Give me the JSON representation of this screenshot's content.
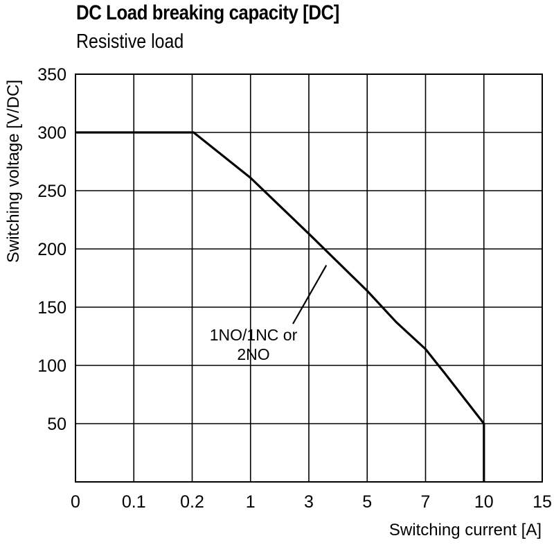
{
  "chart_data": {
    "type": "line",
    "title": "DC Load breaking capacity [DC]",
    "subtitle": "Resistive load",
    "xlabel": "Switching current [A]",
    "ylabel": "Switching voltage [V/DC]",
    "x_scale": "categorical-nonlinear",
    "x_ticks": [
      "0",
      "0.1",
      "0.2",
      "1",
      "3",
      "5",
      "7",
      "10",
      "15"
    ],
    "y_ticks": [
      "350",
      "300",
      "250",
      "200",
      "150",
      "100",
      "50"
    ],
    "ylim": [
      0,
      350
    ],
    "grid": true,
    "series": [
      {
        "name": "1NO/1NC or 2NO",
        "points": [
          {
            "x": 0,
            "y": 300
          },
          {
            "x": 0.22,
            "y": 300
          },
          {
            "x": 1,
            "y": 261
          },
          {
            "x": 3,
            "y": 213
          },
          {
            "x": 5,
            "y": 164
          },
          {
            "x": 6,
            "y": 137
          },
          {
            "x": 7,
            "y": 114
          },
          {
            "x": 8,
            "y": 93
          },
          {
            "x": 10,
            "y": 50
          },
          {
            "x": 10,
            "y": 0
          }
        ]
      }
    ],
    "annotations": [
      {
        "text_lines": [
          "1NO/1NC or",
          "2NO"
        ],
        "points_to_series": "1NO/1NC or 2NO"
      }
    ]
  }
}
